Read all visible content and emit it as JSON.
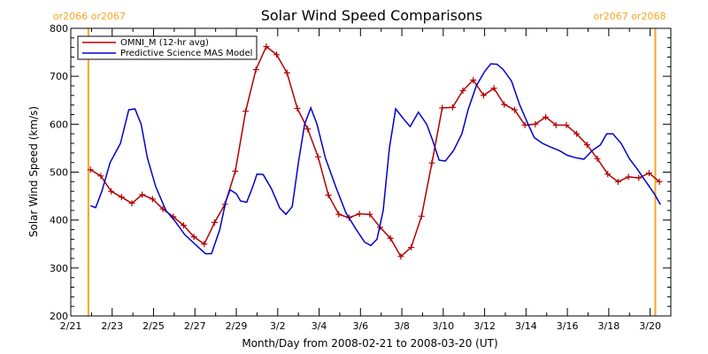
{
  "chart_data": {
    "type": "line",
    "title": "Solar Wind Speed Comparisons",
    "xlabel": "Month/Day from 2008-02-21 to 2008-03-20 (UT)",
    "ylabel": "Solar Wind Speed (km/s)",
    "ylim": [
      200,
      800
    ],
    "xlim": [
      0,
      29
    ],
    "grid": false,
    "legend_placement": "top-left",
    "y_ticks": [
      200,
      300,
      400,
      500,
      600,
      700,
      800
    ],
    "x_ticks": [
      {
        "x": 0,
        "label": "2/21"
      },
      {
        "x": 2,
        "label": "2/23"
      },
      {
        "x": 4,
        "label": "2/25"
      },
      {
        "x": 6,
        "label": "2/27"
      },
      {
        "x": 8,
        "label": "2/29"
      },
      {
        "x": 10,
        "label": "3/2"
      },
      {
        "x": 12,
        "label": "3/4"
      },
      {
        "x": 14,
        "label": "3/6"
      },
      {
        "x": 16,
        "label": "3/8"
      },
      {
        "x": 18,
        "label": "3/10"
      },
      {
        "x": 20,
        "label": "3/12"
      },
      {
        "x": 22,
        "label": "3/14"
      },
      {
        "x": 24,
        "label": "3/16"
      },
      {
        "x": 26,
        "label": "3/18"
      },
      {
        "x": 28,
        "label": "3/20"
      }
    ],
    "carrington_markers": [
      {
        "x": 0.85,
        "label": "or2066 or2067",
        "align": "start",
        "color": "#f5a623"
      },
      {
        "x": 28.25,
        "label": "or2067 or2068",
        "align": "end",
        "color": "#f5a623"
      }
    ],
    "series": [
      {
        "name": "OMNI_M (12-hr avg)",
        "color": "#b00000",
        "markers": "plus",
        "points": [
          [
            0.95,
            505
          ],
          [
            1.45,
            492
          ],
          [
            1.95,
            460
          ],
          [
            2.45,
            448
          ],
          [
            2.95,
            435
          ],
          [
            3.45,
            453
          ],
          [
            3.95,
            444
          ],
          [
            4.45,
            423
          ],
          [
            4.95,
            407
          ],
          [
            5.45,
            389
          ],
          [
            5.95,
            365
          ],
          [
            6.45,
            350
          ],
          [
            6.95,
            395
          ],
          [
            7.45,
            433
          ],
          [
            7.95,
            502
          ],
          [
            8.45,
            627
          ],
          [
            8.95,
            714
          ],
          [
            9.45,
            762
          ],
          [
            9.95,
            745
          ],
          [
            10.45,
            707
          ],
          [
            10.95,
            633
          ],
          [
            11.45,
            590
          ],
          [
            11.95,
            532
          ],
          [
            12.45,
            452
          ],
          [
            12.95,
            412
          ],
          [
            13.45,
            405
          ],
          [
            13.95,
            413
          ],
          [
            14.45,
            412
          ],
          [
            14.95,
            385
          ],
          [
            15.45,
            362
          ],
          [
            15.95,
            324
          ],
          [
            16.45,
            343
          ],
          [
            16.95,
            408
          ],
          [
            17.45,
            519
          ],
          [
            17.95,
            634
          ],
          [
            18.45,
            635
          ],
          [
            18.95,
            670
          ],
          [
            19.45,
            692
          ],
          [
            19.95,
            660
          ],
          [
            20.45,
            675
          ],
          [
            20.95,
            641
          ],
          [
            21.45,
            630
          ],
          [
            21.95,
            598
          ],
          [
            22.45,
            600
          ],
          [
            22.95,
            615
          ],
          [
            23.45,
            598
          ],
          [
            23.95,
            598
          ],
          [
            24.45,
            580
          ],
          [
            24.95,
            557
          ],
          [
            25.45,
            528
          ],
          [
            25.95,
            496
          ],
          [
            26.45,
            480
          ],
          [
            26.95,
            490
          ],
          [
            27.45,
            488
          ],
          [
            27.95,
            498
          ],
          [
            28.45,
            480
          ]
        ]
      },
      {
        "name": "Predictive Science MAS Model",
        "color": "#0000cc",
        "markers": "none",
        "points": [
          [
            0.95,
            430
          ],
          [
            1.2,
            426
          ],
          [
            1.5,
            460
          ],
          [
            1.9,
            520
          ],
          [
            2.4,
            560
          ],
          [
            2.8,
            630
          ],
          [
            3.1,
            632
          ],
          [
            3.4,
            600
          ],
          [
            3.7,
            530
          ],
          [
            4.1,
            470
          ],
          [
            4.6,
            420
          ],
          [
            5.0,
            400
          ],
          [
            5.5,
            370
          ],
          [
            6.0,
            350
          ],
          [
            6.5,
            330
          ],
          [
            6.8,
            330
          ],
          [
            7.2,
            380
          ],
          [
            7.5,
            440
          ],
          [
            7.7,
            463
          ],
          [
            8.0,
            455
          ],
          [
            8.2,
            440
          ],
          [
            8.5,
            437
          ],
          [
            8.8,
            470
          ],
          [
            9.0,
            496
          ],
          [
            9.3,
            495
          ],
          [
            9.7,
            465
          ],
          [
            10.1,
            425
          ],
          [
            10.4,
            412
          ],
          [
            10.7,
            428
          ],
          [
            11.0,
            520
          ],
          [
            11.3,
            600
          ],
          [
            11.6,
            634
          ],
          [
            11.9,
            600
          ],
          [
            12.3,
            530
          ],
          [
            12.8,
            470
          ],
          [
            13.3,
            415
          ],
          [
            13.8,
            380
          ],
          [
            14.2,
            354
          ],
          [
            14.5,
            347
          ],
          [
            14.8,
            360
          ],
          [
            15.1,
            420
          ],
          [
            15.4,
            550
          ],
          [
            15.7,
            632
          ],
          [
            16.1,
            610
          ],
          [
            16.4,
            595
          ],
          [
            16.8,
            625
          ],
          [
            17.2,
            600
          ],
          [
            17.5,
            565
          ],
          [
            17.8,
            525
          ],
          [
            18.1,
            523
          ],
          [
            18.5,
            545
          ],
          [
            18.9,
            580
          ],
          [
            19.2,
            630
          ],
          [
            19.6,
            680
          ],
          [
            20.0,
            710
          ],
          [
            20.3,
            726
          ],
          [
            20.6,
            725
          ],
          [
            20.9,
            714
          ],
          [
            21.3,
            690
          ],
          [
            21.7,
            640
          ],
          [
            22.1,
            600
          ],
          [
            22.4,
            572
          ],
          [
            22.8,
            560
          ],
          [
            23.2,
            552
          ],
          [
            23.6,
            545
          ],
          [
            24.0,
            535
          ],
          [
            24.4,
            530
          ],
          [
            24.8,
            527
          ],
          [
            25.2,
            545
          ],
          [
            25.6,
            557
          ],
          [
            25.9,
            580
          ],
          [
            26.2,
            580
          ],
          [
            26.6,
            560
          ],
          [
            27.0,
            528
          ],
          [
            27.4,
            505
          ],
          [
            27.8,
            480
          ],
          [
            28.2,
            455
          ],
          [
            28.5,
            432
          ]
        ]
      }
    ]
  }
}
